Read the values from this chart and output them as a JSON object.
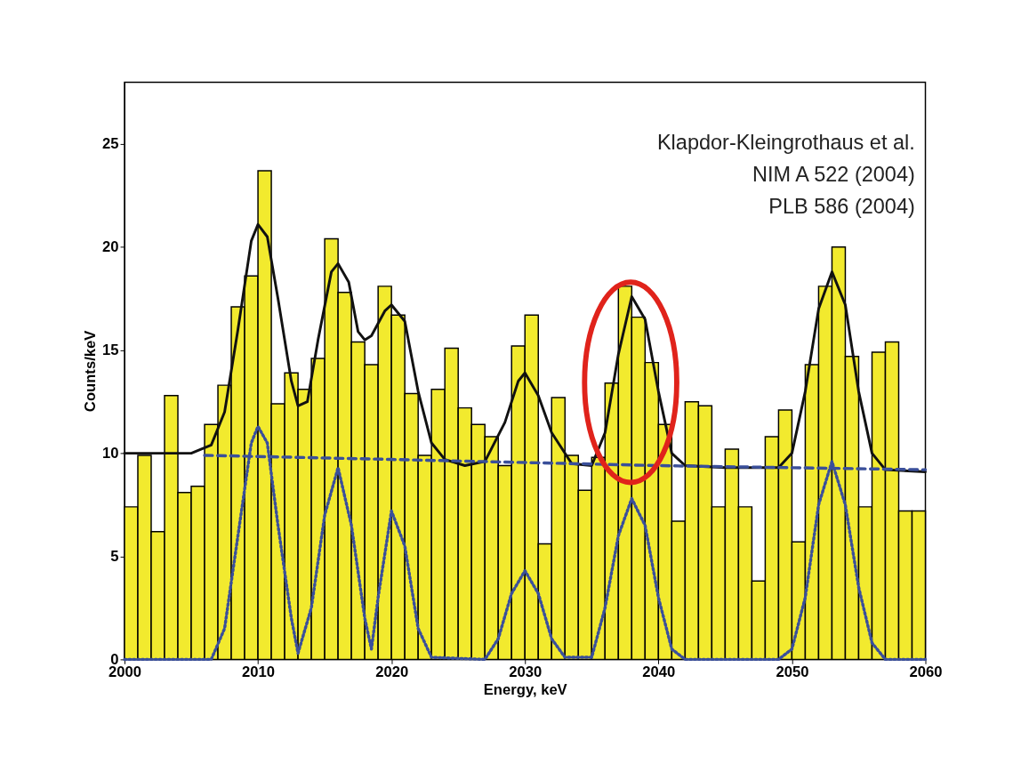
{
  "chart_data": {
    "type": "histogram",
    "xlabel": "Energy, keV",
    "ylabel": "Counts/keV",
    "bins": [
      2000,
      2001,
      2002,
      2003,
      2004,
      2005,
      2006,
      2007,
      2008,
      2009,
      2010,
      2011,
      2012,
      2013,
      2014,
      2015,
      2016,
      2017,
      2018,
      2019,
      2020,
      2021,
      2022,
      2023,
      2024,
      2025,
      2026,
      2027,
      2028,
      2029,
      2030,
      2031,
      2032,
      2033,
      2034,
      2035,
      2036,
      2037,
      2038,
      2039,
      2040,
      2041,
      2042,
      2043,
      2044,
      2045,
      2046,
      2047,
      2048,
      2049,
      2050,
      2051,
      2052,
      2053,
      2054,
      2055,
      2056,
      2057,
      2058,
      2059,
      2060
    ],
    "values": [
      7.4,
      9.9,
      6.2,
      12.8,
      8.1,
      8.4,
      11.4,
      13.3,
      17.1,
      18.6,
      23.7,
      12.4,
      13.9,
      13.1,
      14.6,
      20.4,
      17.8,
      15.4,
      14.3,
      18.1,
      16.7,
      12.9,
      9.9,
      13.1,
      15.1,
      12.2,
      11.4,
      10.8,
      9.4,
      15.2,
      16.7,
      5.6,
      12.7,
      9.9,
      8.2,
      9.8,
      13.4,
      18.1,
      16.6,
      14.4,
      11.4,
      6.7,
      12.5,
      12.3,
      7.4,
      10.2,
      7.4,
      3.8,
      10.8,
      12.1,
      5.7,
      14.3,
      18.1,
      20.0,
      14.7,
      7.4,
      14.9,
      15.4,
      7.2,
      7.2
    ],
    "color": "#f2ea2e",
    "series": [
      {
        "type": "line",
        "color": "#111111",
        "line_style": "solid",
        "x": [
          2000,
          2005,
          2006.5,
          2007.5,
          2008.5,
          2009.5,
          2010,
          2010.7,
          2011.5,
          2012.5,
          2013,
          2013.7,
          2014.5,
          2015.5,
          2016,
          2016.8,
          2017.5,
          2018,
          2018.5,
          2019.5,
          2020,
          2021,
          2022,
          2023,
          2024,
          2025.5,
          2027,
          2028.5,
          2029.5,
          2030,
          2031,
          2032,
          2033.5,
          2035,
          2036,
          2037,
          2038,
          2039,
          2040,
          2041,
          2042,
          2045,
          2049,
          2050,
          2051,
          2052,
          2053,
          2054,
          2055,
          2056,
          2057,
          2060
        ],
        "values": [
          10.0,
          10.0,
          10.4,
          12.0,
          16.0,
          20.3,
          21.1,
          20.5,
          17.5,
          13.5,
          12.3,
          12.5,
          15.5,
          18.8,
          19.2,
          18.3,
          15.9,
          15.5,
          15.7,
          16.9,
          17.2,
          16.4,
          13.0,
          10.5,
          9.7,
          9.4,
          9.6,
          11.5,
          13.5,
          13.9,
          12.8,
          11.0,
          9.5,
          9.4,
          11.0,
          14.8,
          17.6,
          16.5,
          13.0,
          10.0,
          9.4,
          9.3,
          9.3,
          10.0,
          13.0,
          17.0,
          18.8,
          17.2,
          13.0,
          10.0,
          9.2,
          9.1
        ]
      },
      {
        "type": "line",
        "color": "#3a4f9a",
        "line_style": "dashed",
        "x": [
          2006,
          2020,
          2040,
          2060
        ],
        "values": [
          9.9,
          9.7,
          9.4,
          9.2
        ]
      },
      {
        "type": "line",
        "color": "#3a4f9a",
        "line_style": "dotted",
        "x": [
          2000,
          2006.5,
          2007.5,
          2008.5,
          2009.5,
          2010,
          2010.7,
          2011.5,
          2012.5,
          2013,
          2014,
          2015,
          2016,
          2017,
          2018,
          2018.5,
          2019,
          2020,
          2021,
          2022,
          2023,
          2027,
          2028,
          2029,
          2030,
          2031,
          2032,
          2033,
          2035,
          2036,
          2037,
          2038,
          2039,
          2040,
          2041,
          2042,
          2049,
          2050,
          2051,
          2052,
          2053,
          2054,
          2055,
          2056,
          2057,
          2060
        ],
        "values": [
          0,
          0,
          1.5,
          6,
          10.5,
          11.3,
          10.5,
          6.5,
          2,
          0.3,
          2.5,
          7,
          9.3,
          6.5,
          2,
          0.5,
          3,
          7.2,
          5.5,
          1.5,
          0.1,
          0,
          1,
          3.2,
          4.3,
          3.2,
          1,
          0.1,
          0.1,
          2.5,
          6,
          7.8,
          6.5,
          3,
          0.5,
          0,
          0,
          0.5,
          3,
          7.5,
          9.6,
          7.5,
          3.5,
          0.8,
          0,
          0
        ]
      }
    ],
    "xlim": [
      2000,
      2060
    ],
    "xticks": [
      2000,
      2010,
      2020,
      2030,
      2040,
      2050,
      2060
    ],
    "ylim": [
      0,
      28
    ],
    "yticks": [
      0,
      5,
      10,
      15,
      20,
      25
    ],
    "annotations": [
      "Klapdor-Kleingrothaus et al.",
      "NIM A 522 (2004)",
      "PLB 586 (2004)"
    ]
  }
}
